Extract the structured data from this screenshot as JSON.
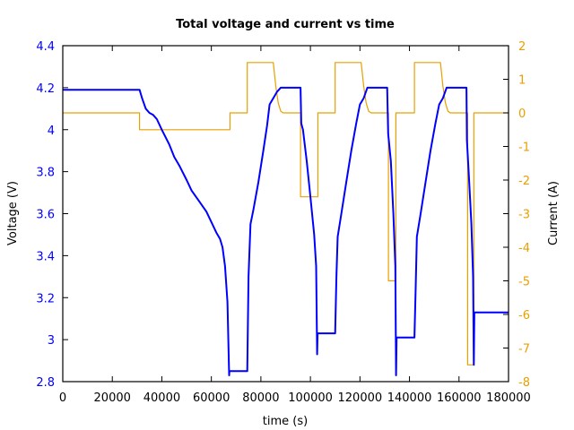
{
  "chart_data": {
    "type": "line",
    "title": "Total voltage and current vs time",
    "xlabel": "time (s)",
    "ylabel": "Voltage (V)",
    "y2label": "Current (A)",
    "xlim": [
      0,
      180000
    ],
    "ylim": [
      2.8,
      4.4
    ],
    "y2lim": [
      -8,
      2
    ],
    "x_ticks": [
      "0",
      "20000",
      "40000",
      "60000",
      "80000",
      "100000",
      "120000",
      "140000",
      "160000",
      "180000"
    ],
    "y_ticks": [
      "4.4",
      "4.2",
      "4",
      "3.8",
      "3.6",
      "3.4",
      "3.2",
      "3",
      "2.8"
    ],
    "y2_ticks": [
      "2",
      "1",
      "0",
      "-1",
      "-2",
      "-3",
      "-4",
      "-5",
      "-6",
      "-7",
      "-8"
    ],
    "grid": false,
    "colors": {
      "voltage": "#0000ff",
      "current": "#e8a000",
      "left_axis_text": "#0000ff",
      "right_axis_text": "#e8a000"
    },
    "series": [
      {
        "name": "Voltage (V)",
        "axis": "left",
        "color": "#0000ff",
        "points": [
          [
            0,
            4.19
          ],
          [
            31000,
            4.19
          ],
          [
            32000,
            4.15
          ],
          [
            33500,
            4.1
          ],
          [
            35000,
            4.08
          ],
          [
            36500,
            4.07
          ],
          [
            38000,
            4.05
          ],
          [
            40000,
            4.0
          ],
          [
            43000,
            3.93
          ],
          [
            45000,
            3.87
          ],
          [
            47000,
            3.83
          ],
          [
            50000,
            3.76
          ],
          [
            52000,
            3.71
          ],
          [
            55000,
            3.66
          ],
          [
            58000,
            3.61
          ],
          [
            60000,
            3.56
          ],
          [
            62000,
            3.51
          ],
          [
            63500,
            3.48
          ],
          [
            64500,
            3.44
          ],
          [
            65500,
            3.35
          ],
          [
            66500,
            3.18
          ],
          [
            67200,
            2.83
          ],
          [
            67300,
            2.85
          ],
          [
            74500,
            2.85
          ],
          [
            75000,
            3.3
          ],
          [
            75800,
            3.55
          ],
          [
            77000,
            3.62
          ],
          [
            79000,
            3.75
          ],
          [
            81000,
            3.9
          ],
          [
            82500,
            4.02
          ],
          [
            83500,
            4.12
          ],
          [
            85000,
            4.15
          ],
          [
            86500,
            4.18
          ],
          [
            88000,
            4.2
          ],
          [
            96000,
            4.2
          ],
          [
            96300,
            4.03
          ],
          [
            97000,
            4.0
          ],
          [
            98500,
            3.85
          ],
          [
            100000,
            3.68
          ],
          [
            101500,
            3.5
          ],
          [
            102300,
            3.35
          ],
          [
            102700,
            2.93
          ],
          [
            102900,
            3.03
          ],
          [
            110000,
            3.03
          ],
          [
            110500,
            3.3
          ],
          [
            111000,
            3.49
          ],
          [
            112500,
            3.6
          ],
          [
            114500,
            3.75
          ],
          [
            116500,
            3.9
          ],
          [
            118500,
            4.03
          ],
          [
            120000,
            4.12
          ],
          [
            121500,
            4.15
          ],
          [
            123000,
            4.2
          ],
          [
            131000,
            4.2
          ],
          [
            131400,
            3.98
          ],
          [
            132500,
            3.85
          ],
          [
            133500,
            3.6
          ],
          [
            134300,
            3.35
          ],
          [
            134600,
            2.83
          ],
          [
            134800,
            3.01
          ],
          [
            142000,
            3.01
          ],
          [
            142500,
            3.25
          ],
          [
            143000,
            3.49
          ],
          [
            144500,
            3.6
          ],
          [
            146500,
            3.75
          ],
          [
            148500,
            3.9
          ],
          [
            150500,
            4.03
          ],
          [
            152000,
            4.12
          ],
          [
            153500,
            4.15
          ],
          [
            155000,
            4.2
          ],
          [
            163000,
            4.2
          ],
          [
            163200,
            3.95
          ],
          [
            164000,
            3.78
          ],
          [
            165000,
            3.55
          ],
          [
            165700,
            3.3
          ],
          [
            166000,
            2.88
          ],
          [
            166200,
            3.13
          ],
          [
            180000,
            3.13
          ]
        ]
      },
      {
        "name": "Current (A)",
        "axis": "right",
        "color": "#e8a000",
        "points": [
          [
            0,
            0
          ],
          [
            31000,
            0
          ],
          [
            31000,
            -0.5
          ],
          [
            67500,
            -0.5
          ],
          [
            67500,
            0
          ],
          [
            74500,
            0
          ],
          [
            74500,
            1.5
          ],
          [
            85000,
            1.5
          ],
          [
            86000,
            0.8
          ],
          [
            87000,
            0.3
          ],
          [
            88000,
            0.05
          ],
          [
            89000,
            0
          ],
          [
            96000,
            0
          ],
          [
            96000,
            -2.5
          ],
          [
            103000,
            -2.5
          ],
          [
            103000,
            0
          ],
          [
            110000,
            0
          ],
          [
            110000,
            1.5
          ],
          [
            120500,
            1.5
          ],
          [
            121500,
            0.8
          ],
          [
            122500,
            0.3
          ],
          [
            123500,
            0.05
          ],
          [
            124500,
            0
          ],
          [
            131500,
            0
          ],
          [
            131500,
            -5
          ],
          [
            134500,
            -5
          ],
          [
            134500,
            0
          ],
          [
            142000,
            0
          ],
          [
            142000,
            1.5
          ],
          [
            152500,
            1.5
          ],
          [
            153500,
            0.8
          ],
          [
            154500,
            0.3
          ],
          [
            155500,
            0.05
          ],
          [
            156500,
            0
          ],
          [
            163500,
            0
          ],
          [
            163500,
            -7.5
          ],
          [
            166000,
            -7.5
          ],
          [
            166000,
            0
          ],
          [
            180000,
            0
          ]
        ]
      }
    ]
  }
}
